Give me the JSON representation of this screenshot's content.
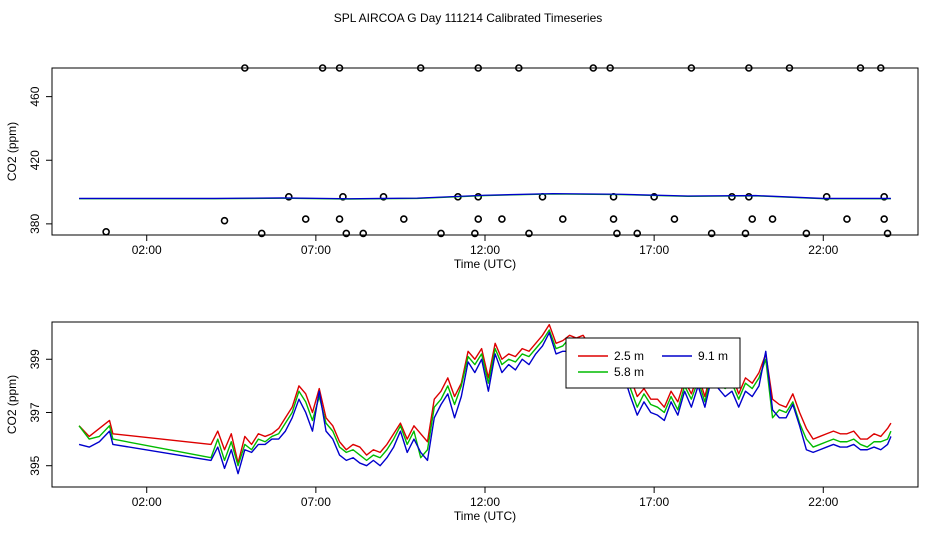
{
  "title": "SPL AIRCOA G  Day 111214  Calibrated Timeseries",
  "colors": {
    "line_2_5m": "#dd0000",
    "line_5_8m": "#00bb00",
    "line_9_1m": "#0000cc",
    "outliers": "#000000"
  },
  "chart_data": [
    {
      "type": "scatter",
      "xlabel": "Time (UTC)",
      "ylabel": "CO2 (ppm)",
      "x_unit": "hours UTC",
      "xlim": [
        -0.8,
        24.8
      ],
      "ylim": [
        373,
        478
      ],
      "x_ticks": [
        2,
        7,
        12,
        17,
        22
      ],
      "x_tick_labels": [
        "02:00",
        "07:00",
        "12:00",
        "17:00",
        "22:00"
      ],
      "y_ticks": [
        380,
        420,
        460
      ],
      "y_tick_labels": [
        "380",
        "420",
        "460"
      ],
      "outlier_points": [
        {
          "x": 0.8,
          "y": 375
        },
        {
          "x": 4.9,
          "y": 478
        },
        {
          "x": 4.3,
          "y": 382
        },
        {
          "x": 5.4,
          "y": 374
        },
        {
          "x": 6.2,
          "y": 397
        },
        {
          "x": 6.7,
          "y": 383
        },
        {
          "x": 7.2,
          "y": 478
        },
        {
          "x": 7.7,
          "y": 478
        },
        {
          "x": 7.8,
          "y": 397
        },
        {
          "x": 7.7,
          "y": 383
        },
        {
          "x": 7.9,
          "y": 374
        },
        {
          "x": 8.4,
          "y": 374
        },
        {
          "x": 9.0,
          "y": 397
        },
        {
          "x": 9.6,
          "y": 383
        },
        {
          "x": 10.1,
          "y": 478
        },
        {
          "x": 10.7,
          "y": 374
        },
        {
          "x": 11.2,
          "y": 397
        },
        {
          "x": 11.8,
          "y": 478
        },
        {
          "x": 11.8,
          "y": 397
        },
        {
          "x": 11.8,
          "y": 383
        },
        {
          "x": 11.7,
          "y": 374
        },
        {
          "x": 12.5,
          "y": 383
        },
        {
          "x": 13.0,
          "y": 478
        },
        {
          "x": 13.3,
          "y": 374
        },
        {
          "x": 13.7,
          "y": 397
        },
        {
          "x": 14.3,
          "y": 383
        },
        {
          "x": 15.2,
          "y": 478
        },
        {
          "x": 15.7,
          "y": 478
        },
        {
          "x": 15.8,
          "y": 397
        },
        {
          "x": 15.8,
          "y": 383
        },
        {
          "x": 15.9,
          "y": 374
        },
        {
          "x": 16.5,
          "y": 374
        },
        {
          "x": 17.0,
          "y": 397
        },
        {
          "x": 17.6,
          "y": 383
        },
        {
          "x": 18.1,
          "y": 478
        },
        {
          "x": 18.7,
          "y": 374
        },
        {
          "x": 19.3,
          "y": 397
        },
        {
          "x": 19.8,
          "y": 478
        },
        {
          "x": 19.8,
          "y": 397
        },
        {
          "x": 19.9,
          "y": 383
        },
        {
          "x": 19.7,
          "y": 374
        },
        {
          "x": 20.5,
          "y": 383
        },
        {
          "x": 21.0,
          "y": 478
        },
        {
          "x": 21.5,
          "y": 374
        },
        {
          "x": 22.1,
          "y": 397
        },
        {
          "x": 22.7,
          "y": 383
        },
        {
          "x": 23.1,
          "y": 478
        },
        {
          "x": 23.7,
          "y": 478
        },
        {
          "x": 23.8,
          "y": 397
        },
        {
          "x": 23.8,
          "y": 383
        },
        {
          "x": 23.9,
          "y": 374
        }
      ],
      "trace": {
        "x": [
          0,
          4,
          6,
          8,
          10,
          12,
          14,
          16,
          18,
          20,
          22,
          24
        ],
        "y": [
          396,
          396,
          396.3,
          395.8,
          396.2,
          398,
          399,
          398.6,
          397.5,
          397.8,
          396,
          396
        ]
      }
    },
    {
      "type": "line",
      "xlabel": "Time (UTC)",
      "ylabel": "CO2 (ppm)",
      "x_unit": "hours UTC",
      "xlim": [
        -0.8,
        24.8
      ],
      "ylim": [
        394.2,
        400.4
      ],
      "x_ticks": [
        2,
        7,
        12,
        17,
        22
      ],
      "x_tick_labels": [
        "02:00",
        "07:00",
        "12:00",
        "17:00",
        "22:00"
      ],
      "y_ticks": [
        395,
        397,
        399
      ],
      "y_tick_labels": [
        "395",
        "397",
        "399"
      ],
      "legend_placement": "top-right",
      "series": [
        {
          "name": "2.5 m",
          "x": [
            0,
            0.3,
            0.6,
            0.9,
            1.0,
            3.9,
            4.1,
            4.3,
            4.5,
            4.7,
            4.9,
            5.1,
            5.3,
            5.5,
            5.7,
            5.9,
            6.1,
            6.3,
            6.5,
            6.7,
            6.9,
            7.1,
            7.3,
            7.5,
            7.7,
            7.9,
            8.1,
            8.3,
            8.5,
            8.7,
            8.9,
            9.1,
            9.3,
            9.5,
            9.7,
            9.9,
            10.1,
            10.3,
            10.5,
            10.7,
            10.9,
            11.1,
            11.3,
            11.5,
            11.7,
            11.9,
            12.1,
            12.3,
            12.5,
            12.7,
            12.9,
            13.1,
            13.3,
            13.5,
            13.7,
            13.9,
            14.1,
            14.3,
            14.5,
            14.7,
            14.9,
            15.1,
            15.3,
            15.5,
            15.7,
            15.9,
            16.1,
            16.3,
            16.5,
            16.7,
            16.9,
            17.1,
            17.3,
            17.5,
            17.7,
            17.9,
            18.1,
            18.3,
            18.5,
            18.7,
            18.9,
            19.1,
            19.3,
            19.5,
            19.7,
            19.9,
            20.1,
            20.3,
            20.5,
            20.7,
            20.9,
            21.1,
            21.3,
            21.5,
            21.7,
            21.9,
            22.1,
            22.3,
            22.5,
            22.7,
            22.9,
            23.1,
            23.3,
            23.5,
            23.7,
            23.9,
            24.0
          ],
          "y": [
            396.5,
            396.1,
            396.4,
            396.7,
            396.2,
            395.8,
            396.3,
            395.6,
            396.2,
            395.1,
            396.1,
            395.8,
            396.2,
            396.1,
            396.2,
            396.4,
            396.8,
            397.2,
            398.0,
            397.7,
            397.0,
            397.9,
            396.8,
            396.5,
            395.9,
            395.6,
            395.8,
            395.7,
            395.4,
            395.6,
            395.5,
            395.8,
            396.2,
            396.6,
            396.0,
            396.5,
            396.2,
            395.9,
            397.5,
            397.8,
            398.3,
            397.6,
            398.1,
            399.3,
            399.0,
            399.4,
            398.3,
            399.6,
            399.0,
            399.2,
            399.1,
            399.4,
            399.3,
            399.6,
            399.9,
            400.3,
            399.6,
            399.7,
            399.9,
            399.8,
            399.9,
            399.5,
            399.2,
            399.4,
            399.1,
            398.8,
            398.9,
            398.3,
            397.6,
            397.9,
            397.5,
            397.5,
            397.2,
            397.8,
            397.4,
            398.2,
            397.7,
            398.4,
            397.6,
            398.6,
            398.3,
            398.1,
            398.4,
            397.7,
            398.3,
            398.1,
            398.5,
            399.2,
            397.5,
            397.3,
            397.2,
            397.7,
            397.0,
            396.4,
            396.0,
            396.1,
            396.2,
            396.3,
            396.2,
            396.2,
            396.3,
            396.0,
            396.0,
            396.2,
            396.1,
            396.4,
            396.6
          ]
        },
        {
          "name": "5.8 m",
          "x": [
            0,
            0.3,
            0.6,
            0.9,
            1.0,
            3.9,
            4.1,
            4.3,
            4.5,
            4.7,
            4.9,
            5.1,
            5.3,
            5.5,
            5.7,
            5.9,
            6.1,
            6.3,
            6.5,
            6.7,
            6.9,
            7.1,
            7.3,
            7.5,
            7.7,
            7.9,
            8.1,
            8.3,
            8.5,
            8.7,
            8.9,
            9.1,
            9.3,
            9.5,
            9.7,
            9.9,
            10.1,
            10.3,
            10.5,
            10.7,
            10.9,
            11.1,
            11.3,
            11.5,
            11.7,
            11.9,
            12.1,
            12.3,
            12.5,
            12.7,
            12.9,
            13.1,
            13.3,
            13.5,
            13.7,
            13.9,
            14.1,
            14.3,
            14.5,
            14.7,
            14.9,
            15.1,
            15.3,
            15.5,
            15.7,
            15.9,
            16.1,
            16.3,
            16.5,
            16.7,
            16.9,
            17.1,
            17.3,
            17.5,
            17.7,
            17.9,
            18.1,
            18.3,
            18.5,
            18.7,
            18.9,
            19.1,
            19.3,
            19.5,
            19.7,
            19.9,
            20.1,
            20.3,
            20.5,
            20.7,
            20.9,
            21.1,
            21.3,
            21.5,
            21.7,
            21.9,
            22.1,
            22.3,
            22.5,
            22.7,
            22.9,
            23.1,
            23.3,
            23.5,
            23.7,
            23.9,
            24.0
          ],
          "y": [
            396.5,
            396.0,
            396.1,
            396.5,
            396.0,
            395.3,
            396.0,
            395.2,
            395.9,
            395.0,
            395.8,
            395.6,
            396.0,
            395.9,
            396.1,
            396.2,
            396.6,
            397.0,
            397.8,
            397.4,
            396.7,
            397.6,
            396.6,
            396.3,
            395.7,
            395.5,
            395.6,
            395.4,
            395.2,
            395.4,
            395.3,
            395.6,
            396.0,
            396.5,
            395.8,
            396.3,
            395.3,
            395.6,
            397.2,
            397.5,
            398.0,
            397.3,
            398.0,
            399.1,
            398.8,
            399.2,
            398.1,
            399.4,
            398.8,
            399.0,
            398.9,
            399.2,
            399.1,
            399.4,
            399.7,
            400.1,
            399.4,
            399.5,
            399.8,
            399.7,
            399.6,
            399.4,
            399.1,
            399.2,
            398.8,
            398.6,
            398.7,
            397.9,
            397.2,
            397.7,
            397.3,
            397.2,
            397.0,
            397.6,
            397.1,
            398.0,
            397.5,
            398.2,
            397.4,
            398.5,
            398.1,
            397.9,
            398.1,
            397.5,
            398.1,
            397.9,
            398.3,
            399.0,
            396.8,
            397.1,
            397.0,
            397.4,
            396.6,
            396.0,
            395.7,
            395.8,
            395.9,
            396.0,
            395.9,
            395.9,
            396.0,
            395.8,
            395.7,
            395.9,
            395.9,
            396.0,
            396.3
          ]
        },
        {
          "name": "9.1 m",
          "x": [
            0,
            0.3,
            0.6,
            0.9,
            1.0,
            3.9,
            4.1,
            4.3,
            4.5,
            4.7,
            4.9,
            5.1,
            5.3,
            5.5,
            5.7,
            5.9,
            6.1,
            6.3,
            6.5,
            6.7,
            6.9,
            7.1,
            7.3,
            7.5,
            7.7,
            7.9,
            8.1,
            8.3,
            8.5,
            8.7,
            8.9,
            9.1,
            9.3,
            9.5,
            9.7,
            9.9,
            10.1,
            10.3,
            10.5,
            10.7,
            10.9,
            11.1,
            11.3,
            11.5,
            11.7,
            11.9,
            12.1,
            12.3,
            12.5,
            12.7,
            12.9,
            13.1,
            13.3,
            13.5,
            13.7,
            13.9,
            14.1,
            14.3,
            14.5,
            14.7,
            14.9,
            15.1,
            15.3,
            15.5,
            15.7,
            15.9,
            16.1,
            16.3,
            16.5,
            16.7,
            16.9,
            17.1,
            17.3,
            17.5,
            17.7,
            17.9,
            18.1,
            18.3,
            18.5,
            18.7,
            18.9,
            19.1,
            19.3,
            19.5,
            19.7,
            19.9,
            20.1,
            20.3,
            20.5,
            20.7,
            20.9,
            21.1,
            21.3,
            21.5,
            21.7,
            21.9,
            22.1,
            22.3,
            22.5,
            22.7,
            22.9,
            23.1,
            23.3,
            23.5,
            23.7,
            23.9,
            24.0
          ],
          "y": [
            395.8,
            395.7,
            395.9,
            396.3,
            395.8,
            395.2,
            395.7,
            394.9,
            395.6,
            394.7,
            395.6,
            395.5,
            395.8,
            395.8,
            396.0,
            396.0,
            396.3,
            396.8,
            397.5,
            397.0,
            396.3,
            397.8,
            396.3,
            396.0,
            395.4,
            395.2,
            395.3,
            395.1,
            395.0,
            395.2,
            395.0,
            395.3,
            395.7,
            396.3,
            395.5,
            396.0,
            395.5,
            395.2,
            396.8,
            397.3,
            397.7,
            396.8,
            397.6,
            398.9,
            398.5,
            399.0,
            397.8,
            399.2,
            398.5,
            398.8,
            398.6,
            399.0,
            398.8,
            399.2,
            399.5,
            400.0,
            399.2,
            399.3,
            399.3,
            399.6,
            399.3,
            399.2,
            398.8,
            398.9,
            398.5,
            398.3,
            398.4,
            397.6,
            396.9,
            397.4,
            397.0,
            396.9,
            396.7,
            397.4,
            396.9,
            397.8,
            397.2,
            398.0,
            397.2,
            398.3,
            397.9,
            397.6,
            397.8,
            397.2,
            397.8,
            397.6,
            398.0,
            399.3,
            397.1,
            396.8,
            396.8,
            397.3,
            396.5,
            395.6,
            395.5,
            395.6,
            395.7,
            395.8,
            395.7,
            395.7,
            395.8,
            395.6,
            395.6,
            395.7,
            395.6,
            395.8,
            396.1
          ]
        }
      ]
    }
  ]
}
